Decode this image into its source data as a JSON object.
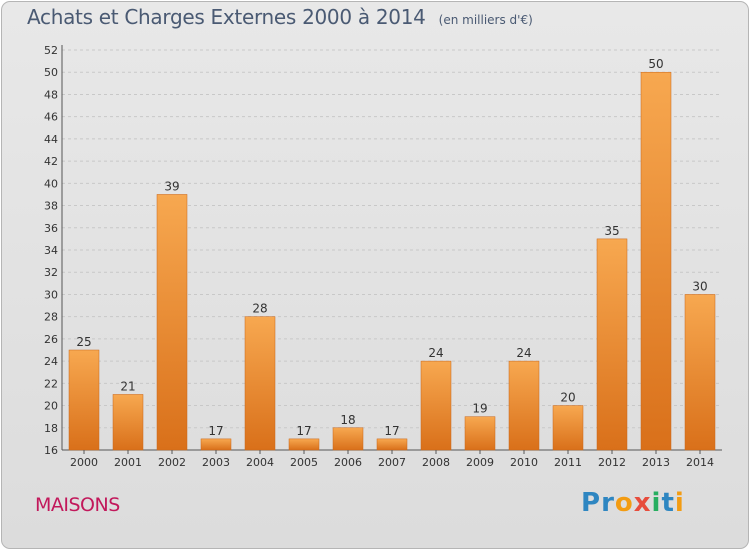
{
  "chart_data": {
    "type": "bar",
    "title": "Achats et Charges Externes 2000 à 2014",
    "subtitle": "(en milliers d'€)",
    "categories": [
      "2000",
      "2001",
      "2002",
      "2003",
      "2004",
      "2005",
      "2006",
      "2007",
      "2008",
      "2009",
      "2010",
      "2011",
      "2012",
      "2013",
      "2014"
    ],
    "values": [
      25,
      21,
      39,
      17,
      28,
      17,
      18,
      17,
      24,
      19,
      24,
      20,
      35,
      50,
      30
    ],
    "ylim": [
      16,
      52
    ],
    "yticks": [
      16,
      18,
      20,
      22,
      24,
      26,
      28,
      30,
      32,
      34,
      36,
      38,
      40,
      42,
      44,
      46,
      48,
      50,
      52
    ],
    "grid": true,
    "colors": {
      "bar": "#f08a26",
      "bar_light": "#f7a850",
      "bar_dark": "#d9701a",
      "grid": "#c8c8c8",
      "text": "#333333"
    }
  },
  "commune": "MAISONS",
  "logo": {
    "letters": [
      "P",
      "r",
      "o",
      "x",
      "i",
      "t",
      "i"
    ],
    "colors": [
      "#2e86c1",
      "#2e86c1",
      "#f39c12",
      "#e74c3c",
      "#27ae60",
      "#2e86c1",
      "#f39c12"
    ]
  }
}
